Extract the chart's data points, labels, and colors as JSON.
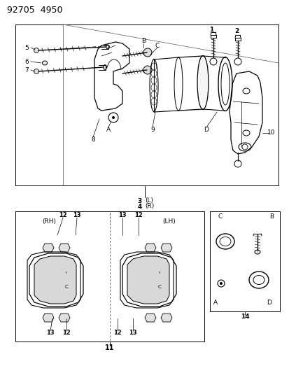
{
  "title": "92705  4950",
  "background_color": "#ffffff",
  "border_color": "#000000",
  "text_color": "#000000",
  "fig_width": 4.14,
  "fig_height": 5.33,
  "dpi": 100,
  "labels": {
    "header": "92705  4950",
    "l1": "1",
    "l2": "2",
    "l3": "3",
    "l4": "4",
    "l5": "5",
    "l6": "6",
    "l7": "7",
    "l8": "8",
    "l9": "9",
    "l10": "10",
    "l11": "11",
    "l12": "12",
    "l13": "13",
    "l14": "14",
    "lA": "A",
    "lB": "B",
    "lC": "C",
    "lD": "D",
    "lRH": "(RH)",
    "lLH": "(LH)",
    "lL": "(L)",
    "lR": "(R)"
  }
}
